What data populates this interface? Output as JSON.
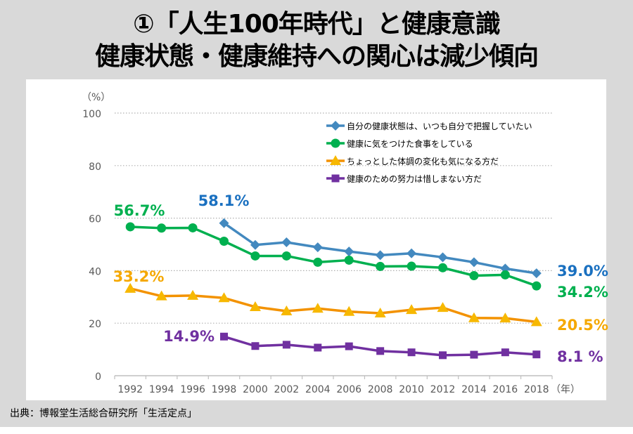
{
  "title": {
    "line1": "①「人生100年時代」と健康意識",
    "line2": "健康状態・健康維持への関心は減少傾向"
  },
  "source": "出典：博報堂生活総合研究所「生活定点」",
  "chart_data": {
    "type": "line",
    "title": "①「人生100年時代」と健康意識 健康状態・健康維持への関心は減少傾向",
    "xlabel": "（年）",
    "ylabel": "（%）",
    "ylim": [
      0,
      100
    ],
    "yticks": [
      0,
      20,
      40,
      60,
      80,
      100
    ],
    "grid": true,
    "legend_position": "top-right",
    "categories": [
      "1992",
      "1994",
      "1996",
      "1998",
      "2000",
      "2002",
      "2004",
      "2006",
      "2008",
      "2010",
      "2012",
      "2014",
      "2016",
      "2018"
    ],
    "series": [
      {
        "name": "自分の健康状態は、いつも自分で把握していたい",
        "color": "#4389bf",
        "label_color": "#1a70c0",
        "marker": "diamond",
        "values": [
          null,
          null,
          null,
          58.1,
          49.8,
          50.8,
          48.9,
          47.3,
          45.9,
          46.6,
          45.1,
          43.2,
          40.8,
          39.0
        ],
        "annotations": [
          {
            "index": 3,
            "text": "58.1%"
          },
          {
            "index": 13,
            "text": "39.0%"
          }
        ]
      },
      {
        "name": "健康に気をつけた食事をしている",
        "color": "#00b04f",
        "label_color": "#00b04f",
        "marker": "circle",
        "values": [
          56.7,
          56.2,
          56.3,
          51.2,
          45.6,
          45.6,
          43.2,
          44.0,
          41.6,
          41.7,
          41.1,
          38.1,
          38.4,
          34.2
        ],
        "annotations": [
          {
            "index": 0,
            "text": "56.7%"
          },
          {
            "index": 13,
            "text": "34.2%"
          }
        ]
      },
      {
        "name": "ちょっとした体調の変化も気になる方だ",
        "color": "#f39200",
        "marker_color": "#f7b800",
        "label_color": "#f5a800",
        "marker": "triangle",
        "values": [
          33.2,
          30.3,
          30.5,
          29.6,
          26.2,
          24.6,
          25.6,
          24.4,
          23.8,
          25.1,
          25.9,
          22.0,
          21.9,
          20.5
        ],
        "annotations": [
          {
            "index": 0,
            "text": "33.2%"
          },
          {
            "index": 13,
            "text": "20.5%"
          }
        ]
      },
      {
        "name": "健康のための努力は惜しまない方だ",
        "color": "#7030a0",
        "label_color": "#7030a0",
        "marker": "square",
        "values": [
          null,
          null,
          null,
          14.9,
          11.3,
          11.8,
          10.7,
          11.2,
          9.4,
          8.9,
          7.8,
          8.0,
          8.9,
          8.1
        ],
        "annotations": [
          {
            "index": 3,
            "text": "14.9%"
          },
          {
            "index": 13,
            "text": "8.1 %"
          }
        ]
      }
    ]
  }
}
